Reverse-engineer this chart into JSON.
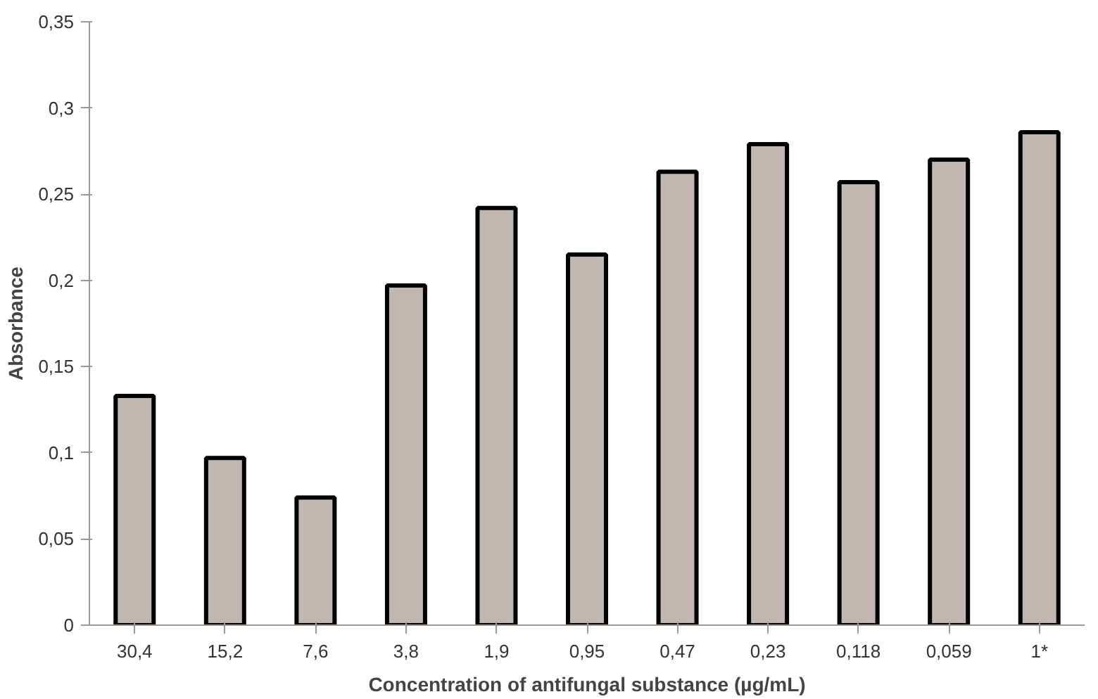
{
  "chart_data": {
    "type": "bar",
    "xlabel": "Concentration of antifungal substance (µg/mL)",
    "ylabel": "Absorbance",
    "categories": [
      "30,4",
      "15,2",
      "7,6",
      "3,8",
      "1,9",
      "0,95",
      "0,47",
      "0,23",
      "0,118",
      "0,059",
      "1*"
    ],
    "values": [
      0.133,
      0.097,
      0.074,
      0.197,
      0.242,
      0.215,
      0.263,
      0.279,
      0.257,
      0.27,
      0.286
    ],
    "color": "#c0b8b0",
    "ylim": [
      0,
      0.35
    ],
    "yticks": [
      {
        "value": 0,
        "label": "0"
      },
      {
        "value": 0.05,
        "label": "0,05"
      },
      {
        "value": 0.1,
        "label": "0,1"
      },
      {
        "value": 0.15,
        "label": "0,15"
      },
      {
        "value": 0.2,
        "label": "0,2"
      },
      {
        "value": 0.25,
        "label": "0,25"
      },
      {
        "value": 0.3,
        "label": "0,3"
      },
      {
        "value": 0.35,
        "label": "0,35"
      }
    ],
    "grid": false
  }
}
